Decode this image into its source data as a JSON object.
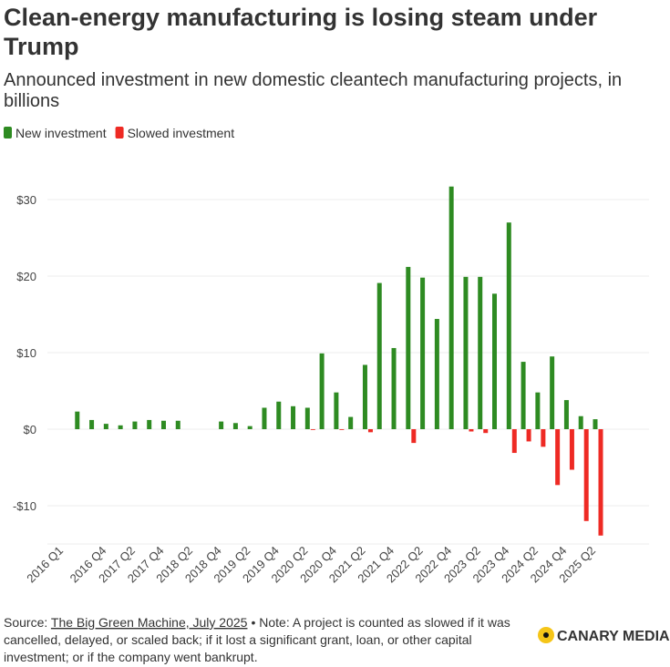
{
  "chart_data": {
    "type": "bar",
    "title": "Clean-energy manufacturing is losing steam under Trump",
    "subtitle": "Announced investment in new domestic cleantech manufacturing projects, in billions",
    "categories": [
      "2016 Q1",
      null,
      null,
      "2016 Q4",
      null,
      "2017 Q2",
      null,
      "2017 Q4",
      null,
      "2018 Q2",
      null,
      "2018 Q4",
      null,
      "2019 Q2",
      null,
      "2019 Q4",
      null,
      "2020 Q2",
      null,
      "2020 Q4",
      null,
      "2021 Q2",
      null,
      "2021 Q4",
      null,
      "2022 Q2",
      null,
      "2022 Q4",
      null,
      "2023 Q2",
      null,
      "2023 Q4",
      null,
      "2024 Q2",
      null,
      "2024 Q4",
      null,
      "2025 Q2"
    ],
    "series": [
      {
        "name": "New investment",
        "color": "#2e8b22",
        "values": [
          0,
          2.3,
          1.2,
          0.7,
          0.5,
          1.0,
          1.2,
          1.1,
          1.1,
          0,
          0,
          1.0,
          0.8,
          0.4,
          2.8,
          3.6,
          3.0,
          2.8,
          9.9,
          4.8,
          1.6,
          8.4,
          19.1,
          10.6,
          21.2,
          19.8,
          14.4,
          31.7,
          19.9,
          19.9,
          17.7,
          27.0,
          8.8,
          4.8,
          9.5,
          3.8,
          1.7,
          1.3
        ]
      },
      {
        "name": "Slowed investment",
        "color": "#ee2a24",
        "values": [
          0,
          0,
          0,
          0,
          0,
          0,
          0,
          0,
          0,
          0,
          0,
          0,
          0,
          0,
          0,
          0,
          0,
          -0.1,
          0,
          -0.1,
          0,
          -0.4,
          0,
          0,
          -1.8,
          0,
          0,
          0,
          -0.3,
          -0.5,
          0,
          -3.1,
          -1.6,
          -2.3,
          -7.3,
          -5.3,
          -12.0,
          -13.9
        ]
      }
    ],
    "ylim": [
      -15,
      35
    ],
    "yticks": [
      {
        "value": -10,
        "label": "-$10"
      },
      {
        "value": 0,
        "label": "$0"
      },
      {
        "value": 10,
        "label": "$10"
      },
      {
        "value": 20,
        "label": "$20"
      },
      {
        "value": 30,
        "label": "$30"
      }
    ],
    "grid": true,
    "legend": "top-left",
    "source_label": "Source:",
    "source_link": "The Big Green Machine, July 2025",
    "note": "• Note: A project is counted as slowed if it was cancelled, delayed, or scaled back; if it lost a significant grant, loan, or other capital investment; or if the company went bankrupt.",
    "logo": "CANARY MEDIA"
  }
}
